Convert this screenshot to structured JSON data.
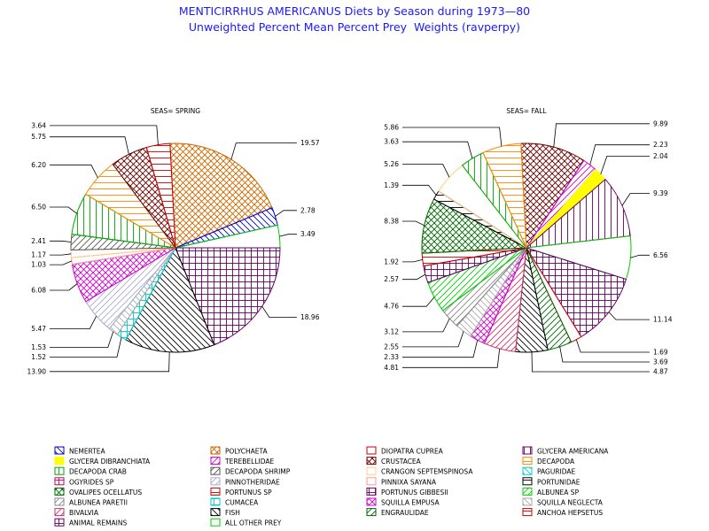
{
  "chart_data": {
    "type": "pie",
    "title": "MENTICIRRHUS AMERICANUS Diets by Season during 1973—80",
    "subtitle": "Unweighted Percent Mean Percent Prey  Weights (ravperpy)",
    "legend": [
      {
        "name": "NEMERTEA",
        "color": "#0000cc",
        "pattern": "diag-l"
      },
      {
        "name": "POLYCHAETA",
        "color": "#cc6600",
        "pattern": "hatchcross-diag"
      },
      {
        "name": "DIOPATRA CUPREA",
        "color": "#cc0000",
        "pattern": "none"
      },
      {
        "name": "GLYCERA AMERICANA",
        "color": "#660066",
        "pattern": "vert"
      },
      {
        "name": "GLYCERA DIBRANCHIATA",
        "color": "#ffff00",
        "pattern": "solid"
      },
      {
        "name": "TEREBELLIDAE",
        "color": "#cc00cc",
        "pattern": "diag-r"
      },
      {
        "name": "CRUSTACEA",
        "color": "#660000",
        "pattern": "hatchcross-diag"
      },
      {
        "name": "DECAPODA",
        "color": "#ff8800",
        "pattern": "horiz"
      },
      {
        "name": "DECAPODA CRAB",
        "color": "#00aa00",
        "pattern": "vert"
      },
      {
        "name": "DECAPODA SHRIMP",
        "color": "#555555",
        "pattern": "diag-r"
      },
      {
        "name": "CRANGON SEPTEMSPINOSA",
        "color": "#ffcc88",
        "pattern": "none"
      },
      {
        "name": "PAGURIDAE",
        "color": "#00cccc",
        "pattern": "diag-l"
      },
      {
        "name": "OGYRIDES SP",
        "color": "#cc0066",
        "pattern": "cross"
      },
      {
        "name": "PINNOTHERIDAE",
        "color": "#aaaacc",
        "pattern": "diag-r"
      },
      {
        "name": "PINNIXA SAYANA",
        "color": "#ff9999",
        "pattern": "none"
      },
      {
        "name": "PORTUNIDAE",
        "color": "#000000",
        "pattern": "horiz"
      },
      {
        "name": "OVALIPES OCELLATUS",
        "color": "#006600",
        "pattern": "hatchcross-diag"
      },
      {
        "name": "PORTUNUS SP",
        "color": "#cc0000",
        "pattern": "horiz"
      },
      {
        "name": "PORTUNUS GIBBESII",
        "color": "#660066",
        "pattern": "cross"
      },
      {
        "name": "ALBUNEA SP",
        "color": "#00cc00",
        "pattern": "diag-r"
      },
      {
        "name": "ALBUNEA PARETII",
        "color": "#888888",
        "pattern": "diag-r"
      },
      {
        "name": "CUMACEA",
        "color": "#00cccc",
        "pattern": "cross"
      },
      {
        "name": "SQUILLA EMPUSA",
        "color": "#cc00cc",
        "pattern": "hatchcross-diag"
      },
      {
        "name": "SQUILLA NEGLECTA",
        "color": "#aaaaaa",
        "pattern": "diag-l"
      },
      {
        "name": "BIVALVIA",
        "color": "#cc3366",
        "pattern": "diag-r"
      },
      {
        "name": "FISH",
        "color": "#000000",
        "pattern": "diag-l"
      },
      {
        "name": "ENGRAULIDAE",
        "color": "#006600",
        "pattern": "diag-r"
      },
      {
        "name": "ANCHOA HEPSETUS",
        "color": "#cc0000",
        "pattern": "horiz"
      },
      {
        "name": "ANIMAL REMAINS",
        "color": "#660066",
        "pattern": "cross"
      },
      {
        "name": "ALL OTHER PREY",
        "color": "#00cc00",
        "pattern": "none"
      }
    ],
    "charts": [
      {
        "label": "SEAS= SPRING",
        "slices": [
          {
            "name": "POLYCHAETA",
            "value": 19.57,
            "label": "19.57"
          },
          {
            "name": "NEMERTEA",
            "value": 2.78,
            "label": "2.78"
          },
          {
            "name": "ALL OTHER PREY",
            "value": 3.49,
            "label": "3.49"
          },
          {
            "name": "ANIMAL REMAINS",
            "value": 18.96,
            "label": "18.96"
          },
          {
            "name": "FISH",
            "value": 13.9,
            "label": "13.90"
          },
          {
            "name": "CUMACEA",
            "value": 1.52,
            "label": "1.52"
          },
          {
            "name": "SQUILLA NEGLECTA",
            "value": 1.53,
            "label": "1.53"
          },
          {
            "name": "PINNOTHERIDAE",
            "value": 5.47,
            "label": "5.47"
          },
          {
            "name": "SQUILLA EMPUSA",
            "value": 6.08,
            "label": "6.08"
          },
          {
            "name": "PINNIXA SAYANA",
            "value": 1.03,
            "label": "1.03"
          },
          {
            "name": "CRANGON SEPTEMSPINOSA",
            "value": 1.17,
            "label": "1.17"
          },
          {
            "name": "DECAPODA SHRIMP",
            "value": 2.41,
            "label": "2.41"
          },
          {
            "name": "DECAPODA CRAB",
            "value": 6.5,
            "label": "6.50"
          },
          {
            "name": "DECAPODA",
            "value": 6.2,
            "label": "6.20"
          },
          {
            "name": "CRUSTACEA",
            "value": 5.75,
            "label": "5.75"
          },
          {
            "name": "PORTUNUS SP",
            "value": 3.64,
            "label": "3.64"
          }
        ]
      },
      {
        "label": "SEAS= FALL",
        "slices": [
          {
            "name": "CRUSTACEA",
            "value": 9.89,
            "label": "9.89"
          },
          {
            "name": "TEREBELLIDAE",
            "value": 2.23,
            "label": "2.23"
          },
          {
            "name": "GLYCERA DIBRANCHIATA",
            "value": 2.04,
            "label": "2.04"
          },
          {
            "name": "GLYCERA AMERICANA",
            "value": 9.39,
            "label": "9.39"
          },
          {
            "name": "ALL OTHER PREY",
            "value": 6.56,
            "label": "6.56"
          },
          {
            "name": "ANIMAL REMAINS",
            "value": 11.14,
            "label": "11.14"
          },
          {
            "name": "DIOPATRA CUPREA",
            "value": 1.69,
            "label": "1.69"
          },
          {
            "name": "ENGRAULIDAE",
            "value": 3.69,
            "label": "3.69"
          },
          {
            "name": "FISH",
            "value": 4.87,
            "label": "4.87"
          },
          {
            "name": "BIVALVIA",
            "value": 4.81,
            "label": "4.81"
          },
          {
            "name": "SQUILLA EMPUSA",
            "value": 2.33,
            "label": "2.33"
          },
          {
            "name": "SQUILLA NEGLECTA",
            "value": 2.55,
            "label": "2.55"
          },
          {
            "name": "ALBUNEA PARETII",
            "value": 3.12,
            "label": "3.12"
          },
          {
            "name": "ALBUNEA SP",
            "value": 4.76,
            "label": "4.76"
          },
          {
            "name": "PORTUNUS GIBBESII",
            "value": 2.57,
            "label": "2.57"
          },
          {
            "name": "PORTUNUS SP",
            "value": 1.92,
            "label": "1.92"
          },
          {
            "name": "OVALIPES OCELLATUS",
            "value": 8.38,
            "label": "8.38"
          },
          {
            "name": "PORTUNIDAE",
            "value": 1.39,
            "label": "1.39"
          },
          {
            "name": "CRANGON SEPTEMSPINOSA",
            "value": 5.26,
            "label": "5.26"
          },
          {
            "name": "DECAPODA CRAB",
            "value": 3.63,
            "label": "3.63"
          },
          {
            "name": "DECAPODA",
            "value": 5.86,
            "label": "5.86"
          }
        ]
      }
    ]
  }
}
